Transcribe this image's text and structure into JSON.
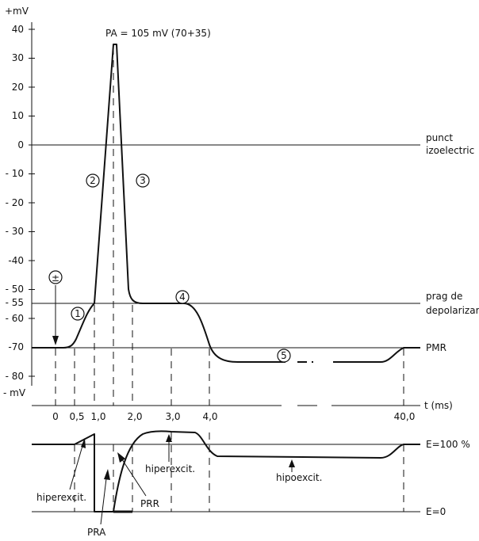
{
  "upper": {
    "y_unit_top": "+mV",
    "y_unit_bottom": "- mV",
    "x_axis_label": "t (ms)",
    "pa_label": "PA = 105  mV (70+35)",
    "y_ticks": [
      {
        "text": "40",
        "v": 40
      },
      {
        "text": "30",
        "v": 30
      },
      {
        "text": "20",
        "v": 20
      },
      {
        "text": "10",
        "v": 10
      },
      {
        "text": "0",
        "v": 0
      },
      {
        "text": "- 10",
        "v": -10
      },
      {
        "text": "- 20",
        "v": -20
      },
      {
        "text": "- 30",
        "v": -30
      },
      {
        "text": "-40",
        "v": -40
      },
      {
        "text": "- 50",
        "v": -50
      },
      {
        "text": "- 55",
        "v": -55
      },
      {
        "text": "- 60",
        "v": -60
      },
      {
        "text": "-70",
        "v": -70
      },
      {
        "text": "- 80",
        "v": -80
      }
    ],
    "x_ticks": [
      {
        "text": "0",
        "ms": 0
      },
      {
        "text": "0,5",
        "ms": 0.5
      },
      {
        "text": "1,0",
        "ms": 1.0
      },
      {
        "text": "2,0",
        "ms": 2.0
      },
      {
        "text": "3,0",
        "ms": 3.0
      },
      {
        "text": "4,0",
        "ms": 4.0
      },
      {
        "text": "40,0",
        "ms": 40.0
      }
    ],
    "isoelectric_label_line1": "punct",
    "isoelectric_label_line2": "izoelectric",
    "threshold_label_line1": "prag de",
    "threshold_label_line2": "depolarizar",
    "rest_label": "PMR",
    "stimulus_symbol": "±",
    "phase_markers": [
      "1",
      "2",
      "3",
      "4",
      "5"
    ]
  },
  "lower": {
    "top_label": "E=100 %",
    "bottom_label": "E=0",
    "hyperexcit_left": "hiperexcit.",
    "hyperexcit_mid": "hiperexcit.",
    "hypoexcit": "hipoexcit.",
    "pra": "PRA",
    "prr": "PRR"
  },
  "chart_data": {
    "type": "line",
    "title": "PA = 105  mV (70+35)",
    "xlabel": "t (ms)",
    "ylabel": "+mV / - mV",
    "ylim": [
      -80,
      40
    ],
    "series": [
      {
        "x_ms": [
          0,
          0.5,
          1.0,
          1.5,
          2.0,
          2.5,
          3.0,
          4.0,
          40.0
        ],
        "values": [
          -70,
          -66,
          -55,
          35,
          -55,
          -55,
          -55,
          -75,
          -70
        ]
      }
    ]
  }
}
